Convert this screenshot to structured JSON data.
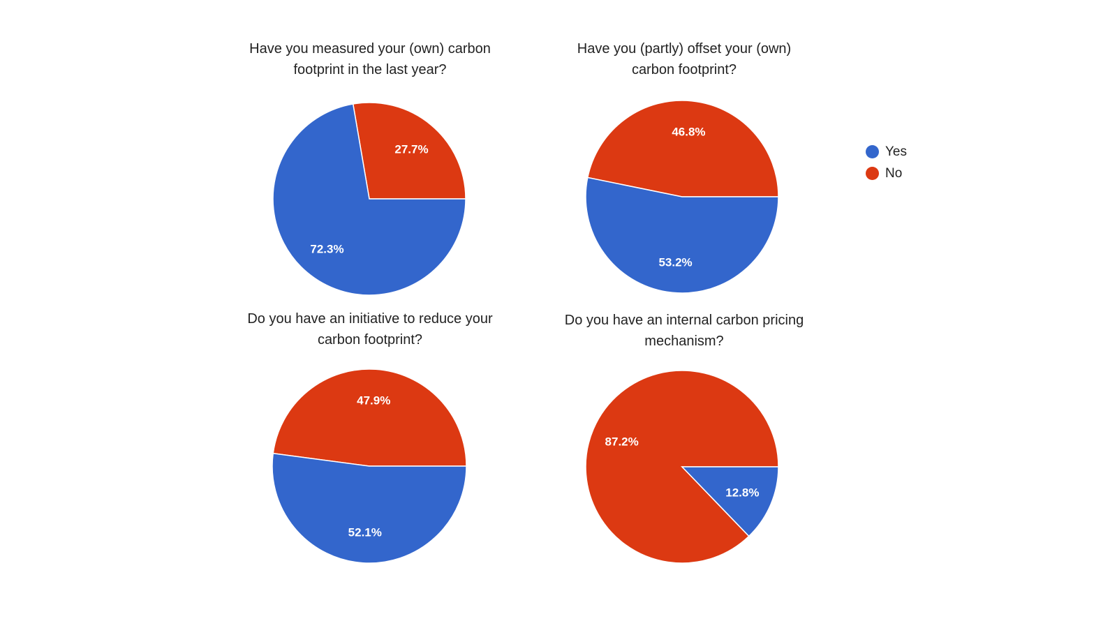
{
  "colors": {
    "yes": "#3366cc",
    "no": "#dc3912"
  },
  "legend": [
    {
      "label": "Yes",
      "color": "#3366cc"
    },
    {
      "label": "No",
      "color": "#dc3912"
    }
  ],
  "chart_data": [
    {
      "type": "pie",
      "title_lines": [
        "Have you measured your (own) carbon",
        "footprint in the last year?"
      ],
      "categories": [
        "Yes",
        "No"
      ],
      "values": [
        72.3,
        27.7
      ],
      "labels": [
        "72.3%",
        "27.7%"
      ]
    },
    {
      "type": "pie",
      "title_lines": [
        "Have you (partly) offset your (own)",
        "carbon footprint?"
      ],
      "categories": [
        "Yes",
        "No"
      ],
      "values": [
        53.2,
        46.8
      ],
      "labels": [
        "53.2%",
        "46.8%"
      ]
    },
    {
      "type": "pie",
      "title_lines": [
        "Do you have an initiative to reduce your",
        "carbon footprint?"
      ],
      "categories": [
        "Yes",
        "No"
      ],
      "values": [
        52.1,
        47.9
      ],
      "labels": [
        "52.1%",
        "47.9%"
      ]
    },
    {
      "type": "pie",
      "title_lines": [
        "Do you have an internal carbon pricing",
        "mechanism?"
      ],
      "categories": [
        "Yes",
        "No"
      ],
      "values": [
        12.8,
        87.2
      ],
      "labels": [
        "12.8%",
        "87.2%"
      ]
    }
  ]
}
